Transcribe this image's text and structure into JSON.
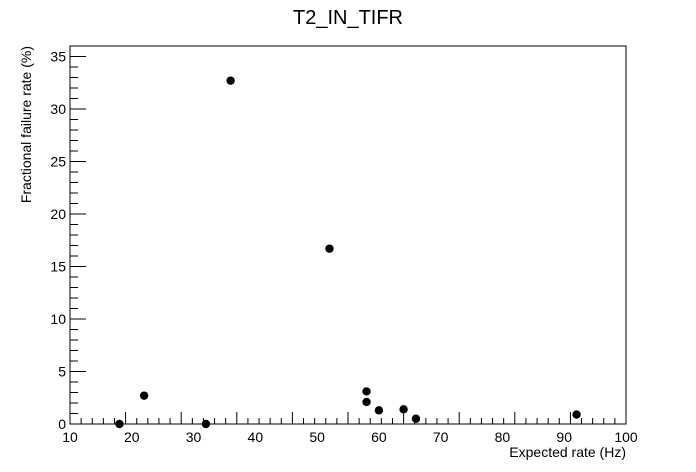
{
  "chart_data": {
    "type": "scatter",
    "title": "T2_IN_TIFR",
    "xlabel": "Expected rate (Hz)",
    "ylabel": "Fractional failure rate (%)",
    "xlim": [
      10,
      100
    ],
    "ylim": [
      0,
      36
    ],
    "x_ticks": [
      10,
      20,
      30,
      40,
      50,
      60,
      70,
      80,
      90,
      100
    ],
    "y_ticks": [
      0,
      5,
      10,
      15,
      20,
      25,
      30,
      35
    ],
    "grid": false,
    "marker_color": "#000000",
    "points": [
      {
        "x": 18,
        "y": 0.0
      },
      {
        "x": 22,
        "y": 2.7
      },
      {
        "x": 32,
        "y": 0.0
      },
      {
        "x": 36,
        "y": 32.7
      },
      {
        "x": 52,
        "y": 16.7
      },
      {
        "x": 58,
        "y": 3.1
      },
      {
        "x": 58,
        "y": 2.1
      },
      {
        "x": 60,
        "y": 1.3
      },
      {
        "x": 64,
        "y": 1.4
      },
      {
        "x": 66,
        "y": 0.5
      },
      {
        "x": 92,
        "y": 0.9
      }
    ]
  }
}
